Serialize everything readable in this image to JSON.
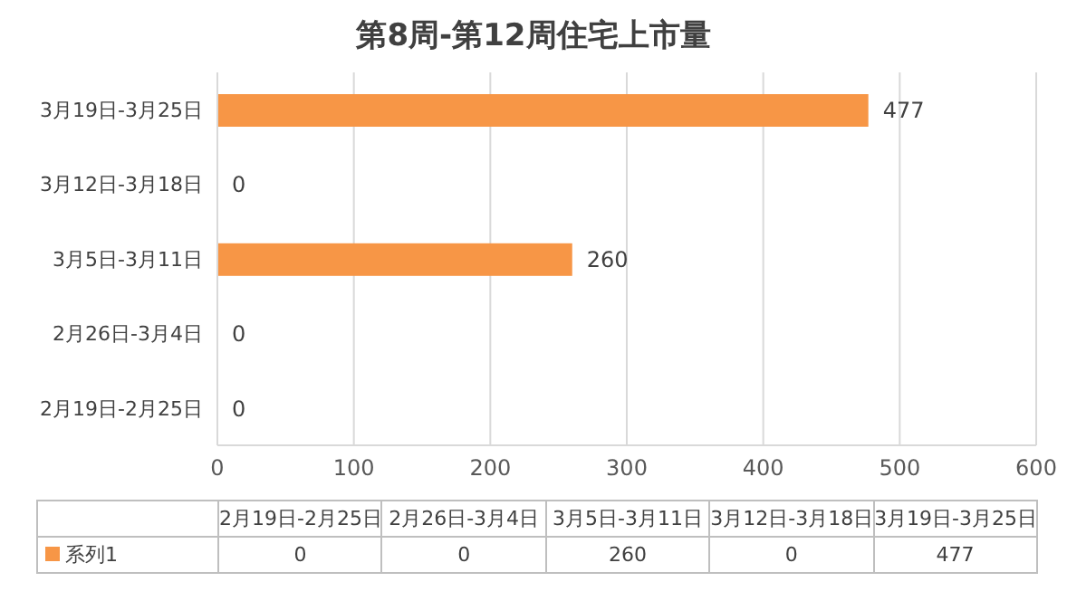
{
  "chart_data": {
    "type": "bar",
    "orientation": "horizontal",
    "title": "第8周-第12周住宅上市量",
    "categories": [
      "3月19日-3月25日",
      "3月12日-3月18日",
      "3月5日-3月11日",
      "2月26日-3月4日",
      "2月19日-2月25日"
    ],
    "series": [
      {
        "name": "系列1",
        "color": "#f79646",
        "values": [
          477,
          0,
          260,
          0,
          0
        ],
        "value_labels": [
          "477",
          "0",
          "260",
          "0",
          "0"
        ]
      }
    ],
    "xlim": [
      0,
      600
    ],
    "xticks": [
      0,
      100,
      200,
      300,
      400,
      500,
      600
    ],
    "grid": "x"
  }
}
